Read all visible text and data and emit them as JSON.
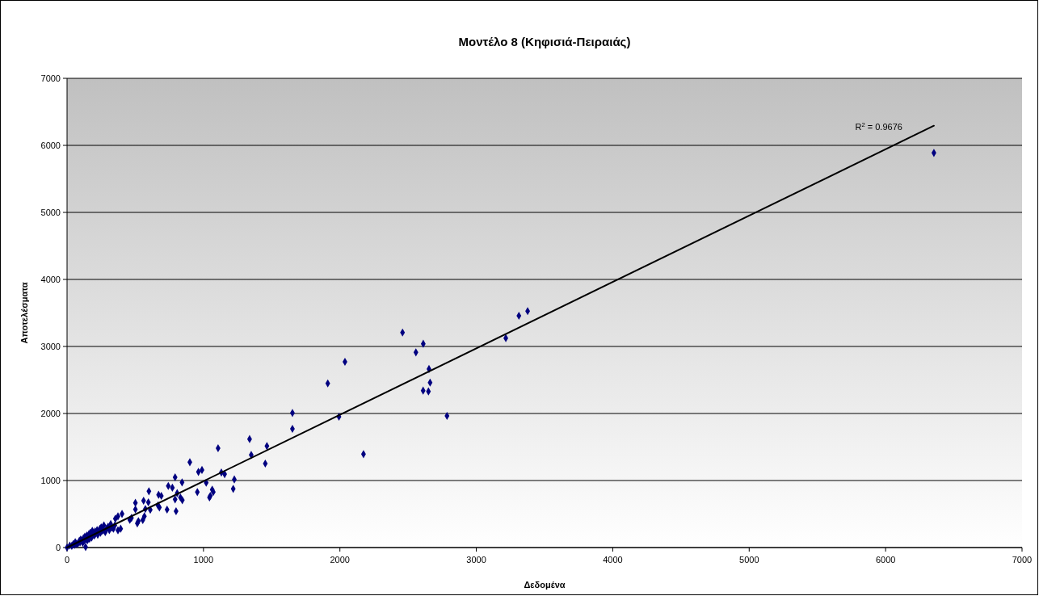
{
  "chart_data": {
    "type": "scatter",
    "title": "Μοντέλο 8 (Κηφισιά-Πειραιάς)",
    "xlabel": "Δεδομένα",
    "ylabel": "Αποτελέσματα",
    "xlim": [
      0,
      7000
    ],
    "xticks": [
      0,
      1000,
      2000,
      3000,
      4000,
      5000,
      6000,
      7000
    ],
    "ylim": [
      0,
      7000
    ],
    "yticks": [
      0,
      1000,
      2000,
      3000,
      4000,
      5000,
      6000,
      7000
    ],
    "grid": "y",
    "series": [
      {
        "color": "#000080",
        "marker": "diamond",
        "x": [
          0,
          136,
          20,
          35,
          45,
          55,
          60,
          70,
          80,
          90,
          95,
          100,
          115,
          120,
          125,
          130,
          140,
          145,
          150,
          160,
          165,
          170,
          180,
          185,
          190,
          200,
          205,
          210,
          220,
          225,
          240,
          245,
          250,
          260,
          270,
          280,
          290,
          300,
          310,
          320,
          330,
          340,
          350,
          354,
          373,
          373,
          393,
          403,
          460,
          472,
          501,
          501,
          515,
          523,
          555,
          561,
          567,
          574,
          596,
          600,
          610,
          667,
          671,
          677,
          691,
          733,
          742,
          772,
          792,
          792,
          799,
          807,
          831,
          843,
          845,
          900,
          955,
          963,
          989,
          1020,
          1044,
          1050,
          1064,
          1072,
          1107,
          1131,
          1155,
          1218,
          1226,
          1338,
          1350,
          1453,
          1465,
          1652,
          1652,
          1911,
          1993,
          2037,
          2173,
          2459,
          2557,
          2610,
          2611,
          2649,
          2653,
          2661,
          2785,
          3216,
          3312,
          3376,
          6354
        ],
        "values": [
          0,
          8,
          30,
          25,
          50,
          40,
          80,
          55,
          60,
          100,
          75,
          120,
          70,
          140,
          100,
          160,
          120,
          180,
          110,
          200,
          130,
          220,
          150,
          250,
          200,
          180,
          240,
          210,
          260,
          190,
          280,
          220,
          300,
          250,
          330,
          230,
          280,
          310,
          260,
          350,
          300,
          280,
          330,
          430,
          466,
          257,
          281,
          502,
          413,
          442,
          666,
          569,
          361,
          394,
          410,
          699,
          466,
          575,
          675,
          840,
          563,
          627,
          787,
          599,
          771,
          566,
          919,
          892,
          1048,
          719,
          542,
          811,
          747,
          972,
          707,
          1273,
          827,
          1129,
          1157,
          967,
          747,
          771,
          864,
          828,
          1482,
          1120,
          1096,
          876,
          1016,
          1618,
          1382,
          1253,
          1514,
          2008,
          1771,
          2449,
          1952,
          2771,
          1394,
          3208,
          2912,
          2341,
          3040,
          2329,
          2663,
          2461,
          1964,
          3124,
          3458,
          3527,
          5888
        ]
      },
      {
        "type": "line",
        "color": "#000000",
        "x": [
          0,
          6354
        ],
        "values": [
          0,
          6293
        ]
      }
    ],
    "annotations": [
      "R$^{2}$ = 0.9676"
    ]
  }
}
